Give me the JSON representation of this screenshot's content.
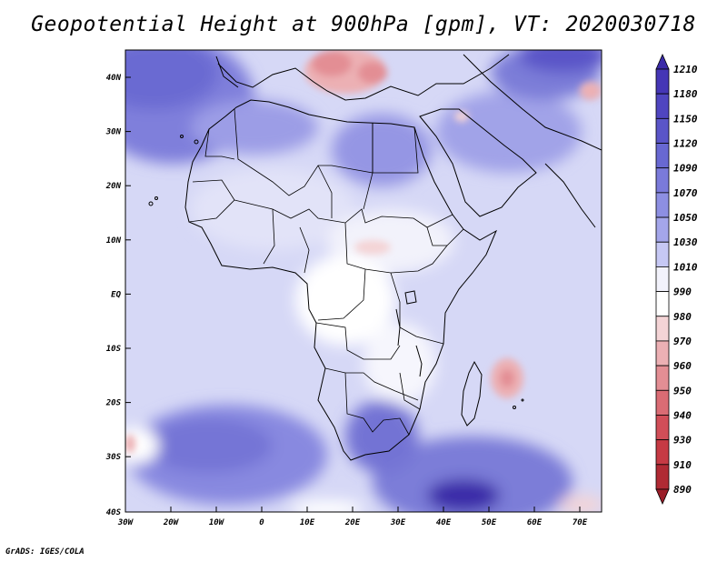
{
  "title": "Geopotential Height at 900hPa [gpm], VT: 2020030718",
  "footer": "GrADS: IGES/COLA",
  "map": {
    "lat_labels": [
      "40N",
      "30N",
      "20N",
      "10N",
      "EQ",
      "10S",
      "20S",
      "30S",
      "40S"
    ],
    "lon_labels": [
      "30W",
      "20W",
      "10W",
      "0",
      "10E",
      "20E",
      "30E",
      "40E",
      "50E",
      "60E",
      "70E"
    ]
  },
  "colorbar": {
    "levels": [
      "1210",
      "1180",
      "1150",
      "1120",
      "1090",
      "1070",
      "1050",
      "1030",
      "1010",
      "990",
      "980",
      "970",
      "960",
      "950",
      "940",
      "930",
      "910",
      "890"
    ],
    "colors": [
      "#3a2aa8",
      "#4536b6",
      "#4f45c0",
      "#5a55c8",
      "#6868d2",
      "#7a7ada",
      "#8d8fe2",
      "#a4a6ea",
      "#c6c8f4",
      "#f2f2fb",
      "#ffffff",
      "#f4d4d6",
      "#ecb0b4",
      "#e38e94",
      "#da6c74",
      "#d14e58",
      "#c63a44",
      "#b02a34",
      "#9a1d28"
    ]
  },
  "colors": {
    "ocean_base": "#d6d8f6",
    "land_base": "#eaeafa",
    "boundary": "#000000"
  }
}
